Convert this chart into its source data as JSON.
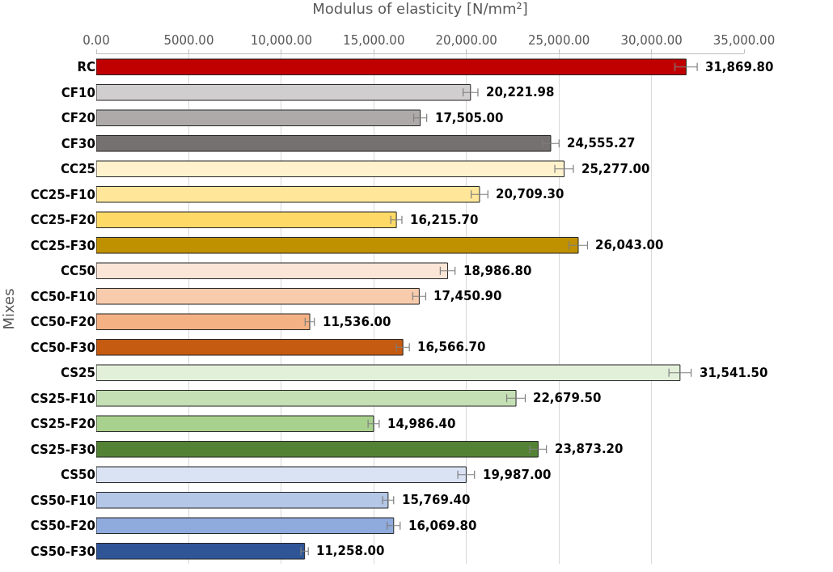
{
  "chart_data": {
    "type": "bar",
    "orientation": "horizontal",
    "xlabel": "Modulus of elasticity [N/mm²]",
    "ylabel": "Mixes",
    "categories": [
      "RC",
      "CF10",
      "CF20",
      "CF30",
      "CC25",
      "CC25-F10",
      "CC25-F20",
      "CC25-F30",
      "CC50",
      "CC50-F10",
      "CC50-F20",
      "CC50-F30",
      "CS25",
      "CS25-F10",
      "CS25-F20",
      "CS25-F30",
      "CS50",
      "CS50-F10",
      "CS50-F20",
      "CS50-F30"
    ],
    "values": [
      31869.8,
      20221.98,
      17505.0,
      24555.27,
      25277.0,
      20709.3,
      16215.7,
      26043.0,
      18986.8,
      17450.9,
      11536.0,
      16566.7,
      31541.5,
      22679.5,
      14986.4,
      23873.2,
      19987.0,
      15769.4,
      16069.8,
      11258.0
    ],
    "value_labels": [
      "31,869.80",
      "20,221.98",
      "17,505.00",
      "24,555.27",
      "25,277.00",
      "20,709.30",
      "16,215.70",
      "26,043.00",
      "18,986.80",
      "17,450.90",
      "11,536.00",
      "16,566.70",
      "31,541.50",
      "22,679.50",
      "14,986.40",
      "23,873.20",
      "19,987.00",
      "15,769.40",
      "16,069.80",
      "11,258.00"
    ],
    "errors": [
      600,
      400,
      350,
      450,
      500,
      450,
      300,
      500,
      400,
      350,
      250,
      350,
      600,
      500,
      300,
      450,
      450,
      300,
      350,
      200
    ],
    "colors": [
      "#c00000",
      "#d0cece",
      "#aeaaaa",
      "#767171",
      "#fff2cc",
      "#ffe699",
      "#ffd966",
      "#bf9000",
      "#fbe5d6",
      "#f8cbad",
      "#f4b183",
      "#c55a11",
      "#e2f0d9",
      "#c5e0b4",
      "#a9d18e",
      "#548235",
      "#dae3f3",
      "#b4c7e7",
      "#8faadc",
      "#2f5597"
    ],
    "xlim": [
      0,
      35000
    ],
    "xticks": [
      {
        "value": 0,
        "label": "0.00"
      },
      {
        "value": 5000,
        "label": "5000.00"
      },
      {
        "value": 10000,
        "label": "10,000.00"
      },
      {
        "value": 15000,
        "label": "15,000.00"
      },
      {
        "value": 20000,
        "label": "20,000.00"
      },
      {
        "value": 25000,
        "label": "25,000.00"
      },
      {
        "value": 30000,
        "label": "30,000.00"
      },
      {
        "value": 35000,
        "label": "35,000.00"
      }
    ],
    "grid": "x"
  }
}
